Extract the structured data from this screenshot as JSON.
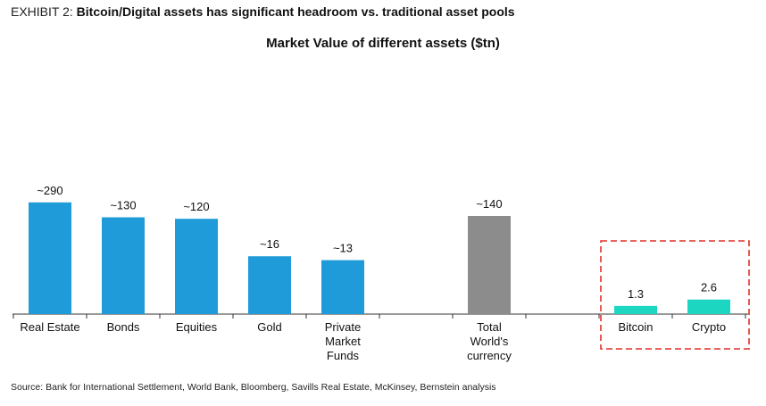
{
  "header": {
    "exhibit_label": "EXHIBIT 2:",
    "exhibit_title": "Bitcoin/Digital assets has significant headroom vs. traditional asset pools"
  },
  "chart_data": {
    "type": "bar",
    "title": "Market Value of different assets ($tn)",
    "categories": [
      "Real Estate",
      "Bonds",
      "Equities",
      "Gold",
      "Private Market Funds",
      "",
      "Total World's currency",
      "",
      "Bitcoin",
      "Crypto"
    ],
    "category_lines": [
      [
        "Real Estate"
      ],
      [
        "Bonds"
      ],
      [
        "Equities"
      ],
      [
        "Gold"
      ],
      [
        "Private",
        "Market",
        "Funds"
      ],
      [],
      [
        "Total",
        "World's",
        "currency"
      ],
      [],
      [
        "Bitcoin"
      ],
      [
        "Crypto"
      ]
    ],
    "values": [
      290,
      130,
      120,
      16,
      13,
      null,
      140,
      null,
      1.3,
      2.6
    ],
    "data_labels": [
      "~290",
      "~130",
      "~120",
      "~16",
      "~13",
      "",
      "~140",
      "",
      "1.3",
      "2.6"
    ],
    "colors": [
      "#1f9bd9",
      "#1f9bd9",
      "#1f9bd9",
      "#1f9bd9",
      "#1f9bd9",
      "",
      "#8c8c8c",
      "",
      "#1dd6c2",
      "#1dd6c2"
    ],
    "highlight": [
      "Bitcoin",
      "Crypto"
    ],
    "highlight_color": "#e0302a",
    "axis_scale": "non-linear (not to scale)",
    "grid": false,
    "legend": "none"
  },
  "footer": {
    "source": "Source: Bank for International Settlement, World Bank, Bloomberg, Savills Real Estate, McKinsey, Bernstein analysis"
  }
}
